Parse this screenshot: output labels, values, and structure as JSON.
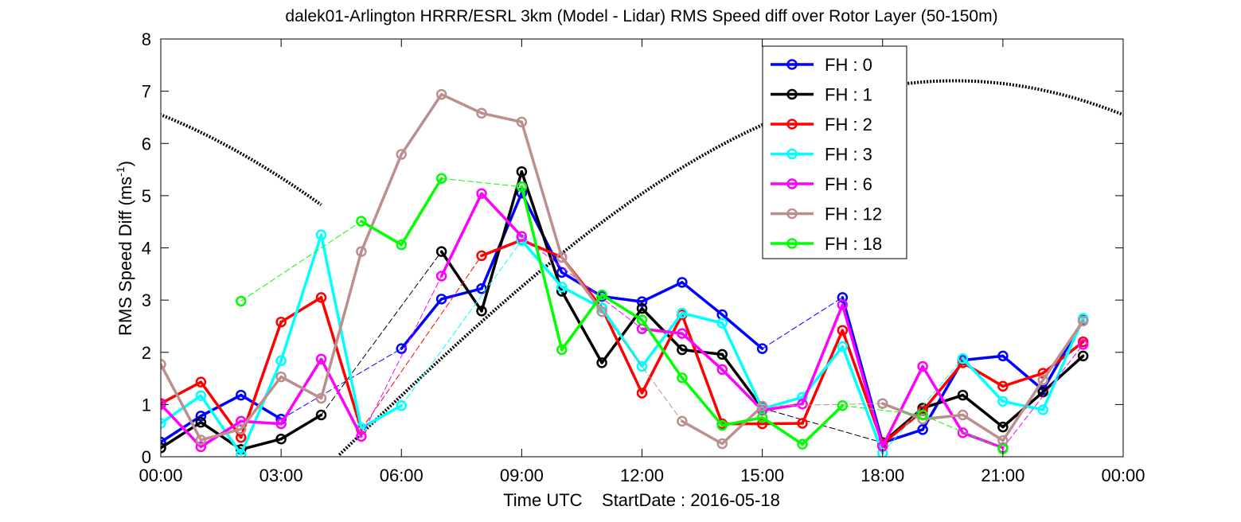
{
  "chart_data": {
    "type": "line",
    "title": "dalek01-Arlington HRRR/ESRL 3km (Model - Lidar) RMS Speed diff over Rotor Layer (50-150m)",
    "xlabel": "Time UTC    StartDate : 2016-05-18",
    "ylabel_main": "RMS Speed Diff (ms",
    "ylabel_sup": "-1",
    "ylabel_end": ")",
    "xlim": [
      0,
      24
    ],
    "ylim": [
      0,
      8
    ],
    "x_ticks": [
      0,
      3,
      6,
      9,
      12,
      15,
      18,
      21,
      24
    ],
    "x_tick_labels": [
      "00:00",
      "03:00",
      "06:00",
      "09:00",
      "12:00",
      "15:00",
      "18:00",
      "21:00",
      "00:00"
    ],
    "y_ticks": [
      0,
      1,
      2,
      3,
      4,
      5,
      6,
      7,
      8
    ],
    "y_tick_labels": [
      "0",
      "1",
      "2",
      "3",
      "4",
      "5",
      "6",
      "7",
      "8"
    ],
    "grid": false,
    "legend_position": "top-right",
    "series": [
      {
        "name": "FH : 0",
        "color": "#0000ff",
        "x": [
          0,
          1,
          2,
          3,
          6,
          7,
          8,
          9,
          10,
          11,
          12,
          13,
          14,
          15,
          17,
          18,
          19,
          20,
          21,
          22,
          23
        ],
        "y": [
          0.28,
          0.78,
          1.18,
          0.72,
          2.07,
          3.02,
          3.22,
          5.05,
          3.53,
          3.07,
          2.97,
          3.34,
          2.72,
          2.07,
          3.05,
          0.27,
          0.52,
          1.85,
          1.93,
          1.28,
          2.62
        ]
      },
      {
        "name": "FH : 1",
        "color": "#000000",
        "x": [
          0,
          1,
          2,
          3,
          4,
          7,
          8,
          9,
          10,
          11,
          12,
          13,
          14,
          15,
          18,
          19,
          20,
          21,
          22,
          23
        ],
        "y": [
          0.17,
          0.66,
          0.14,
          0.34,
          0.8,
          3.93,
          2.79,
          5.46,
          3.17,
          1.8,
          2.84,
          2.05,
          1.96,
          0.93,
          0.27,
          0.93,
          1.18,
          0.57,
          1.24,
          1.93
        ]
      },
      {
        "name": "FH : 2",
        "color": "#ff0000",
        "x": [
          0,
          1,
          2,
          3,
          4,
          5,
          8,
          9,
          10,
          11,
          12,
          13,
          14,
          15,
          16,
          17,
          18,
          19,
          20,
          21,
          22,
          23
        ],
        "y": [
          1.02,
          1.43,
          0.37,
          2.58,
          3.05,
          0.52,
          3.85,
          4.15,
          3.82,
          2.85,
          1.22,
          2.72,
          0.63,
          0.63,
          0.64,
          2.42,
          0.25,
          0.88,
          1.8,
          1.35,
          1.6,
          2.2
        ]
      },
      {
        "name": "FH : 3",
        "color": "#00ffff",
        "x": [
          0,
          1,
          2,
          3,
          4,
          5,
          6,
          9,
          10,
          11,
          12,
          13,
          14,
          15,
          16,
          17,
          18,
          20,
          21,
          22,
          23
        ],
        "y": [
          0.64,
          1.17,
          0.05,
          1.84,
          4.25,
          0.55,
          0.98,
          4.14,
          3.25,
          2.85,
          1.73,
          2.75,
          2.56,
          0.92,
          1.14,
          2.11,
          0.07,
          1.88,
          1.06,
          0.9,
          2.65
        ]
      },
      {
        "name": "FH : 6",
        "color": "#ff00ff",
        "x": [
          0,
          1,
          2,
          3,
          4,
          5,
          7,
          8,
          9,
          12,
          13,
          14,
          15,
          16,
          17,
          18,
          19,
          20,
          21,
          23
        ],
        "y": [
          1.0,
          0.19,
          0.68,
          0.63,
          1.87,
          0.39,
          3.46,
          5.04,
          4.22,
          2.45,
          2.36,
          1.67,
          0.89,
          1.01,
          2.91,
          0.2,
          1.73,
          0.46,
          0.17,
          2.15
        ]
      },
      {
        "name": "FH : 12",
        "color": "#bc8f8f",
        "x": [
          0,
          1,
          2,
          3,
          4,
          5,
          6,
          7,
          8,
          9,
          10,
          11,
          13,
          14,
          15,
          18,
          19,
          20,
          21,
          22,
          23
        ],
        "y": [
          1.77,
          0.32,
          0.53,
          1.53,
          1.12,
          3.93,
          5.79,
          6.94,
          6.58,
          6.41,
          3.82,
          2.78,
          0.68,
          0.25,
          0.97,
          1.02,
          0.72,
          0.8,
          0.31,
          1.47,
          2.6
        ]
      },
      {
        "name": "FH : 18",
        "color": "#00ff00",
        "x": [
          2,
          5,
          6,
          7,
          9,
          10,
          11,
          12,
          13,
          14,
          15,
          16,
          17,
          19,
          21
        ],
        "y": [
          2.98,
          4.51,
          4.06,
          5.33,
          5.17,
          2.05,
          3.1,
          2.62,
          1.51,
          0.6,
          0.75,
          0.24,
          0.98,
          0.8,
          0.15
        ]
      }
    ],
    "solar_curve": {
      "style": "dotted",
      "color": "#000000",
      "amplitude": 7.2,
      "peak_hour": 19.8,
      "half_period_hours": 15.4
    }
  }
}
